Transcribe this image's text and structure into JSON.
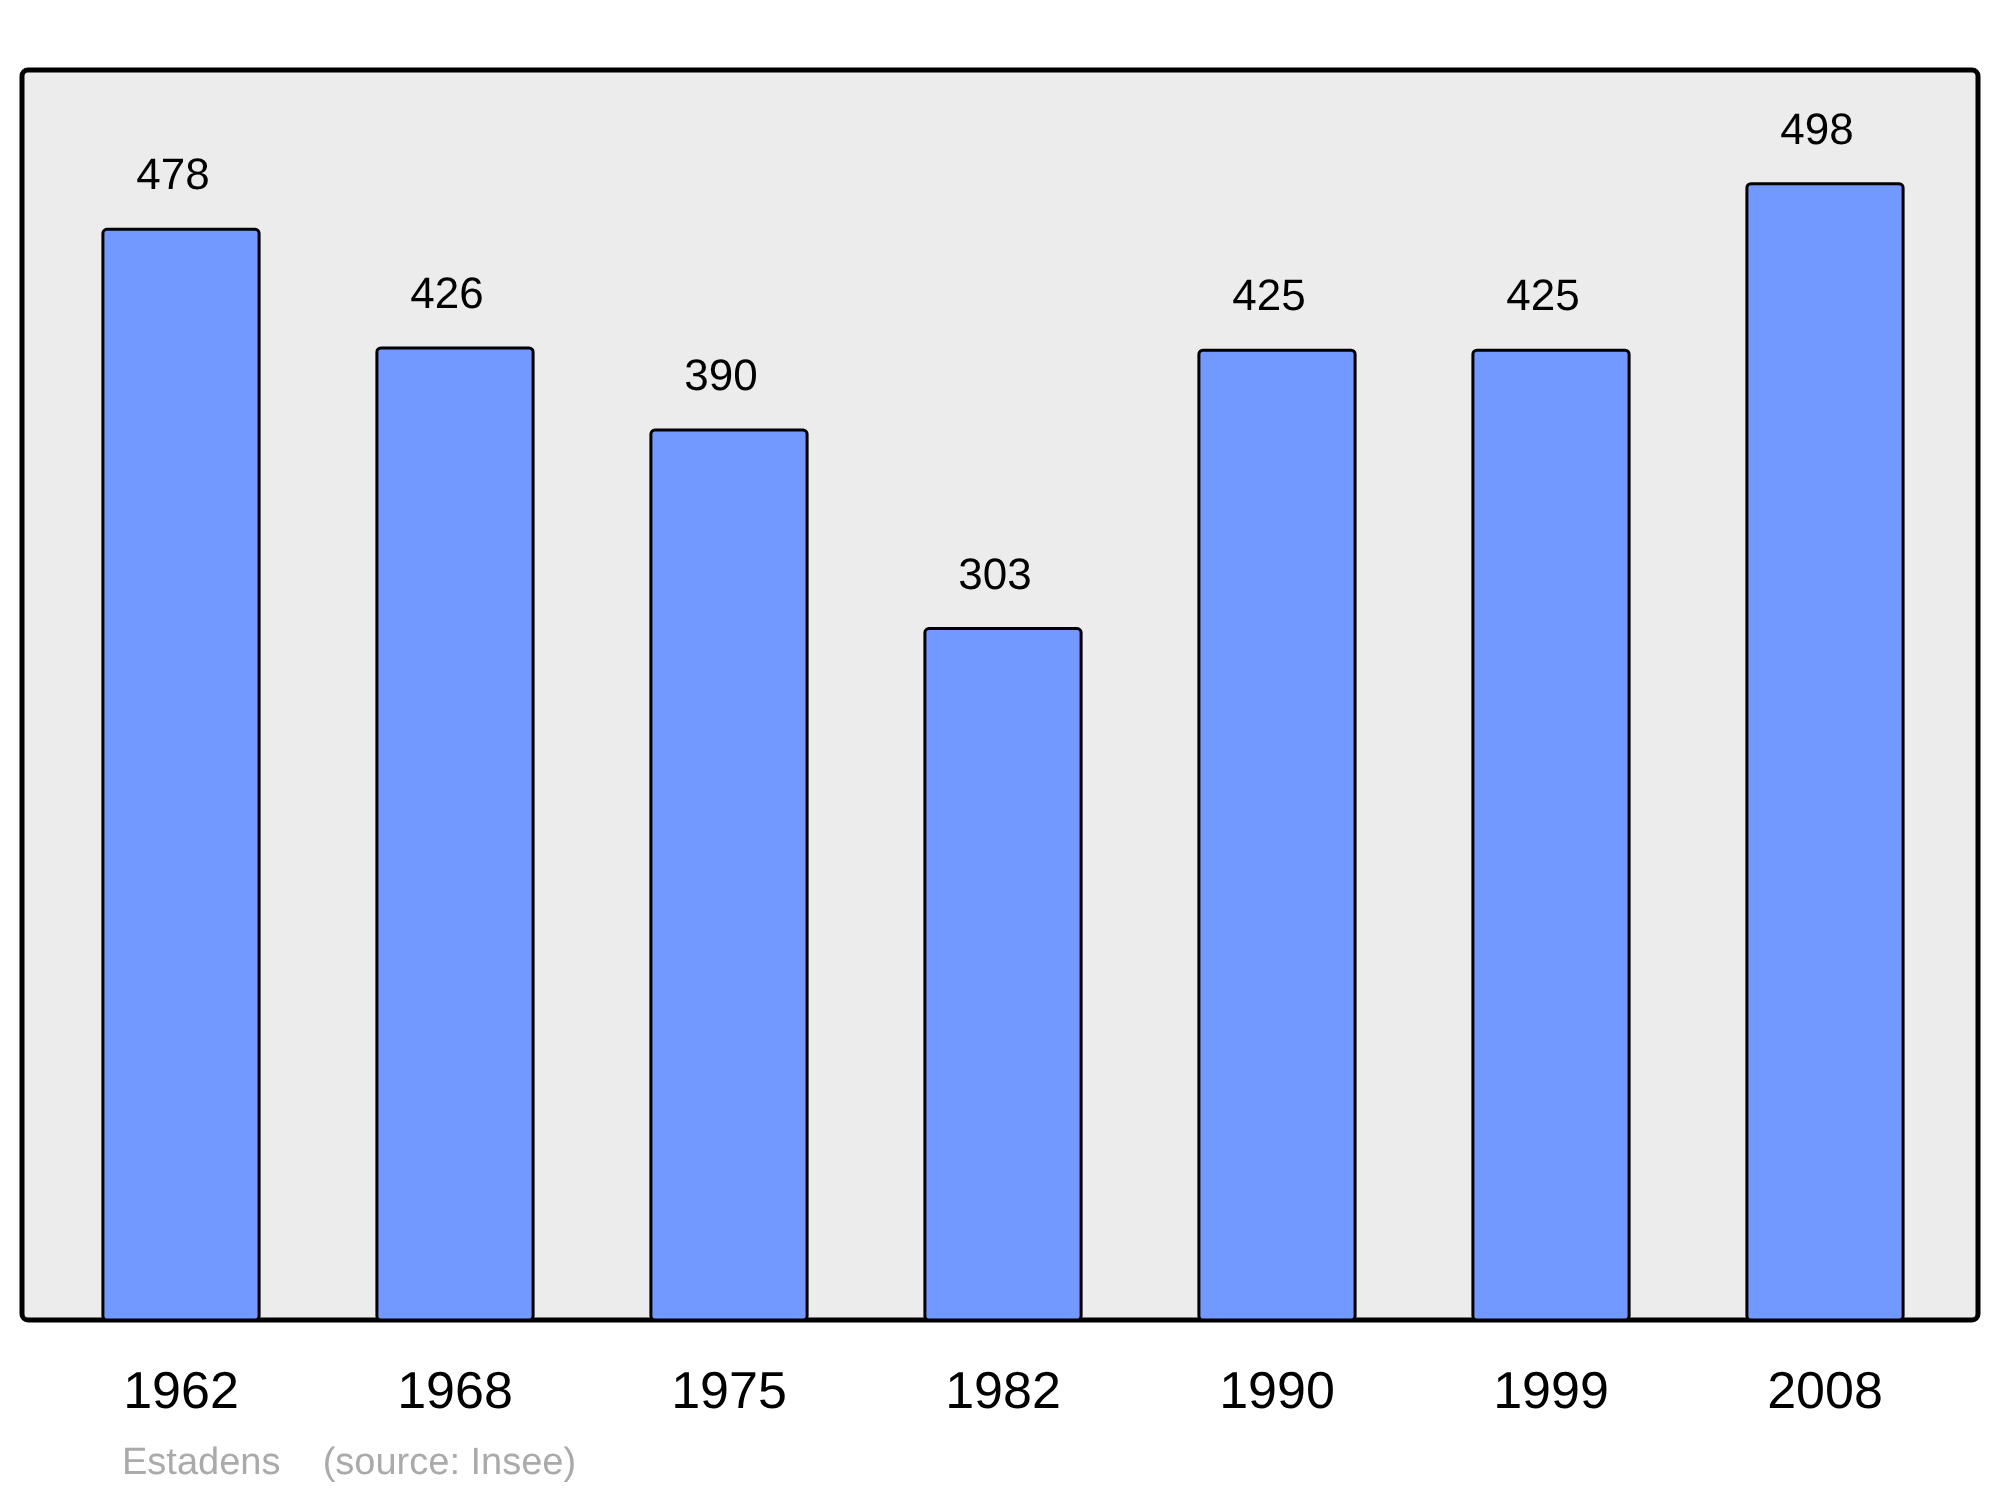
{
  "chart_data": {
    "type": "bar",
    "categories": [
      "1962",
      "1968",
      "1975",
      "1982",
      "1990",
      "1999",
      "2008"
    ],
    "values": [
      478,
      426,
      390,
      303,
      425,
      425,
      498
    ],
    "color": "#7299ff",
    "data_labels": true,
    "annotations": [
      "Estadens    (source: Insee)"
    ]
  }
}
